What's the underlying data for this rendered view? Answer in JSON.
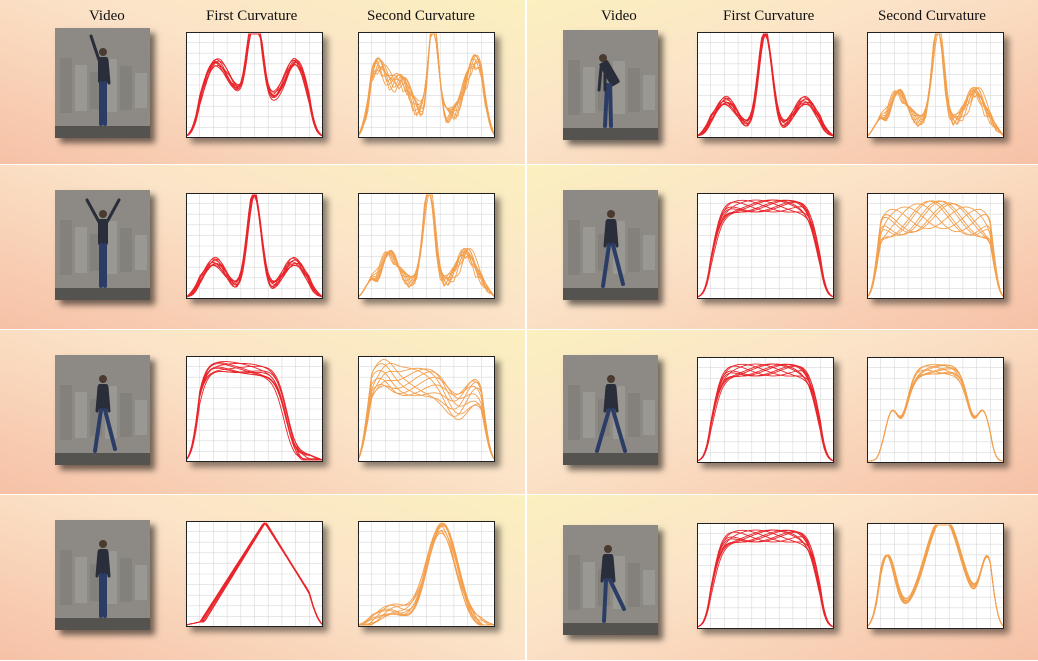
{
  "headers": {
    "left": [
      "Video",
      "First Curvature",
      "Second Curvature"
    ],
    "right": [
      "Video",
      "First Curvature",
      "Second Curvature"
    ]
  },
  "colors": {
    "first_curvature": "#e8262b",
    "second_curvature": "#f3a04e",
    "band_warm": "#f6c1a6",
    "band_light": "#fbf0c0"
  },
  "panels": [
    {
      "side": "left",
      "row": 1,
      "pose": "one-arm-raised",
      "first_shape": "multi-peak",
      "second_shape": "noisy-multi-peak"
    },
    {
      "side": "left",
      "row": 2,
      "pose": "both-arms-raised",
      "first_shape": "central-spike",
      "second_shape": "noisy-central-spike"
    },
    {
      "side": "left",
      "row": 3,
      "pose": "walking",
      "first_shape": "early-plateau",
      "second_shape": "early-plateau-wavy"
    },
    {
      "side": "left",
      "row": 4,
      "pose": "jumping",
      "first_shape": "triangle",
      "second_shape": "right-skewed-peak"
    },
    {
      "side": "right",
      "row": 1,
      "pose": "bending",
      "first_shape": "central-spike",
      "second_shape": "noisy-central-spike"
    },
    {
      "side": "right",
      "row": 2,
      "pose": "walking",
      "first_shape": "plateau",
      "second_shape": "plateau-wavy"
    },
    {
      "side": "right",
      "row": 3,
      "pose": "jumping-jack",
      "first_shape": "plateau",
      "second_shape": "plateau-with-shoulders"
    },
    {
      "side": "right",
      "row": 4,
      "pose": "running",
      "first_shape": "plateau",
      "second_shape": "double-hump"
    }
  ]
}
